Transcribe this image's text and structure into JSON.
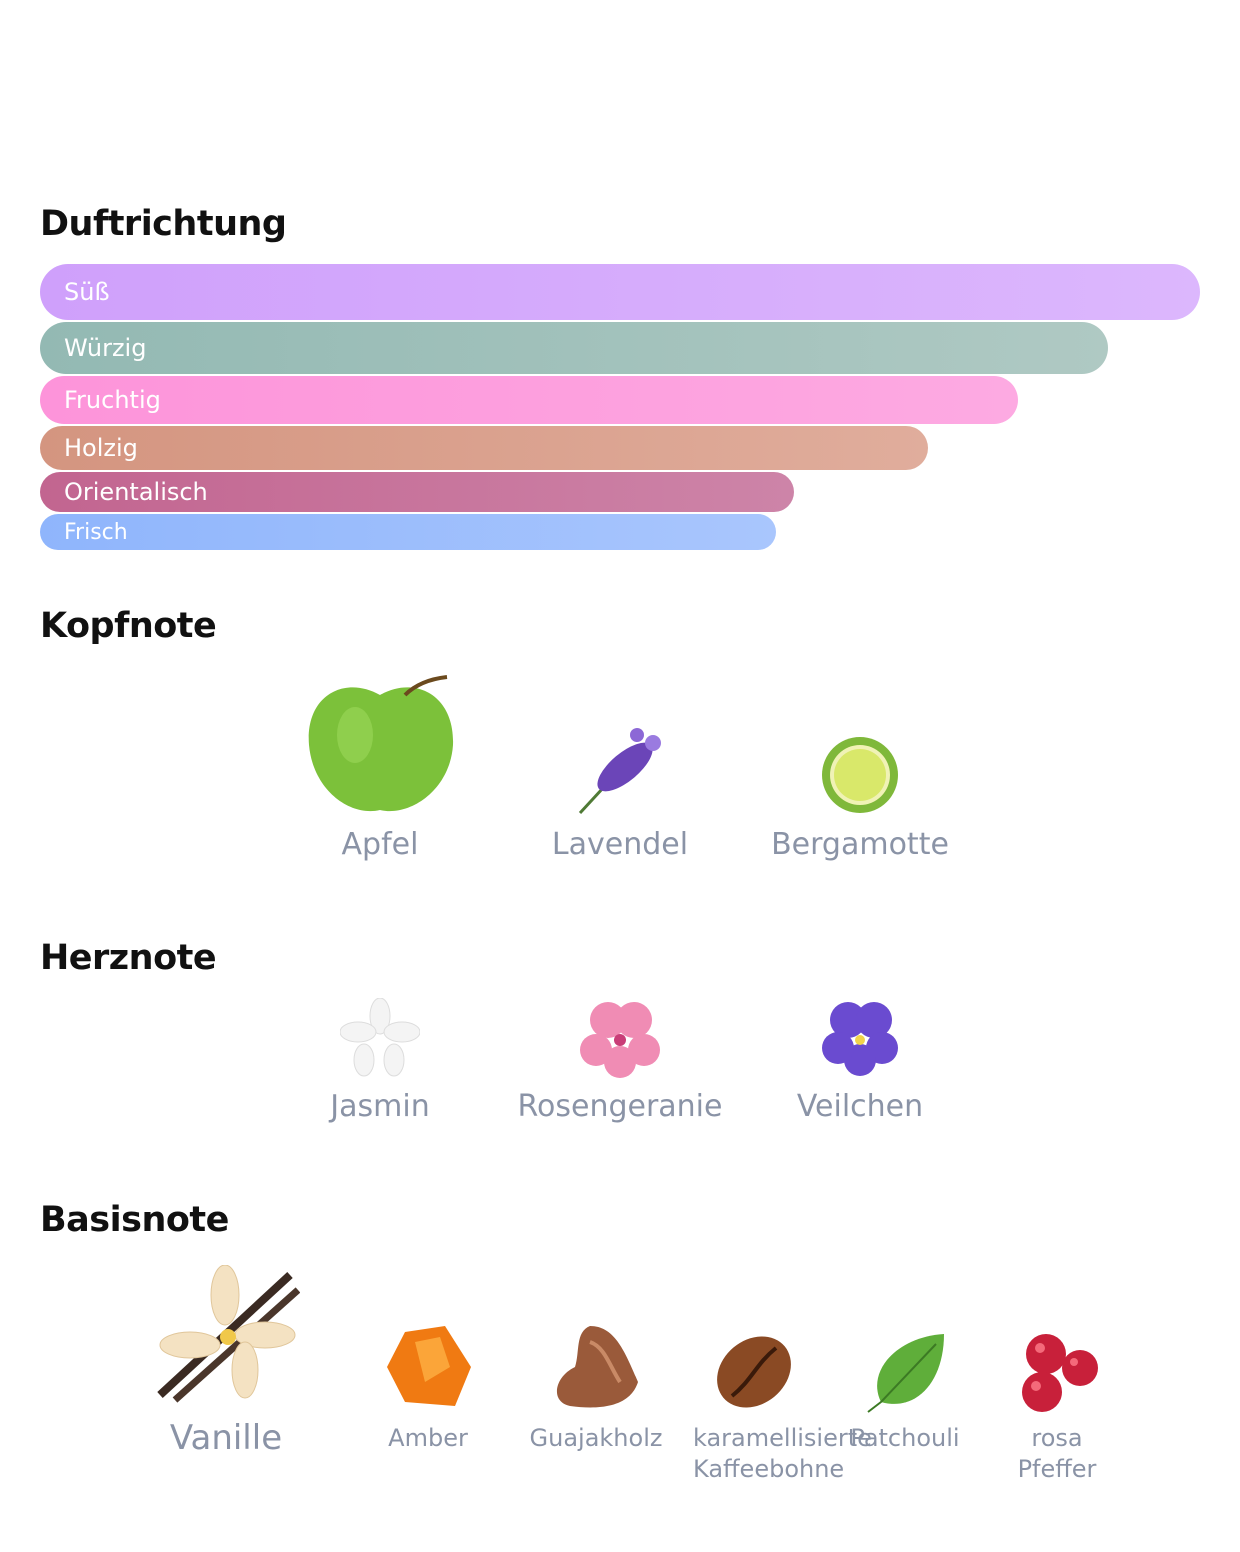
{
  "duftrichtung": {
    "title": "Duftrichtung",
    "bars": [
      "Süß",
      "Würzig",
      "Fruchtig",
      "Holzig",
      "Orientalisch",
      "Frisch"
    ]
  },
  "kopfnote": {
    "title": "Kopfnote",
    "notes": [
      "Apfel",
      "Lavendel",
      "Bergamotte"
    ]
  },
  "herznote": {
    "title": "Herznote",
    "notes": [
      "Jasmin",
      "Rosengeranie",
      "Veilchen"
    ]
  },
  "basisnote": {
    "title": "Basisnote",
    "notes": [
      "Vanille",
      "Amber",
      "Guajakholz",
      "karamellisierte Kaffeebohne",
      "Patchouli",
      "rosa Pfeffer"
    ]
  }
}
